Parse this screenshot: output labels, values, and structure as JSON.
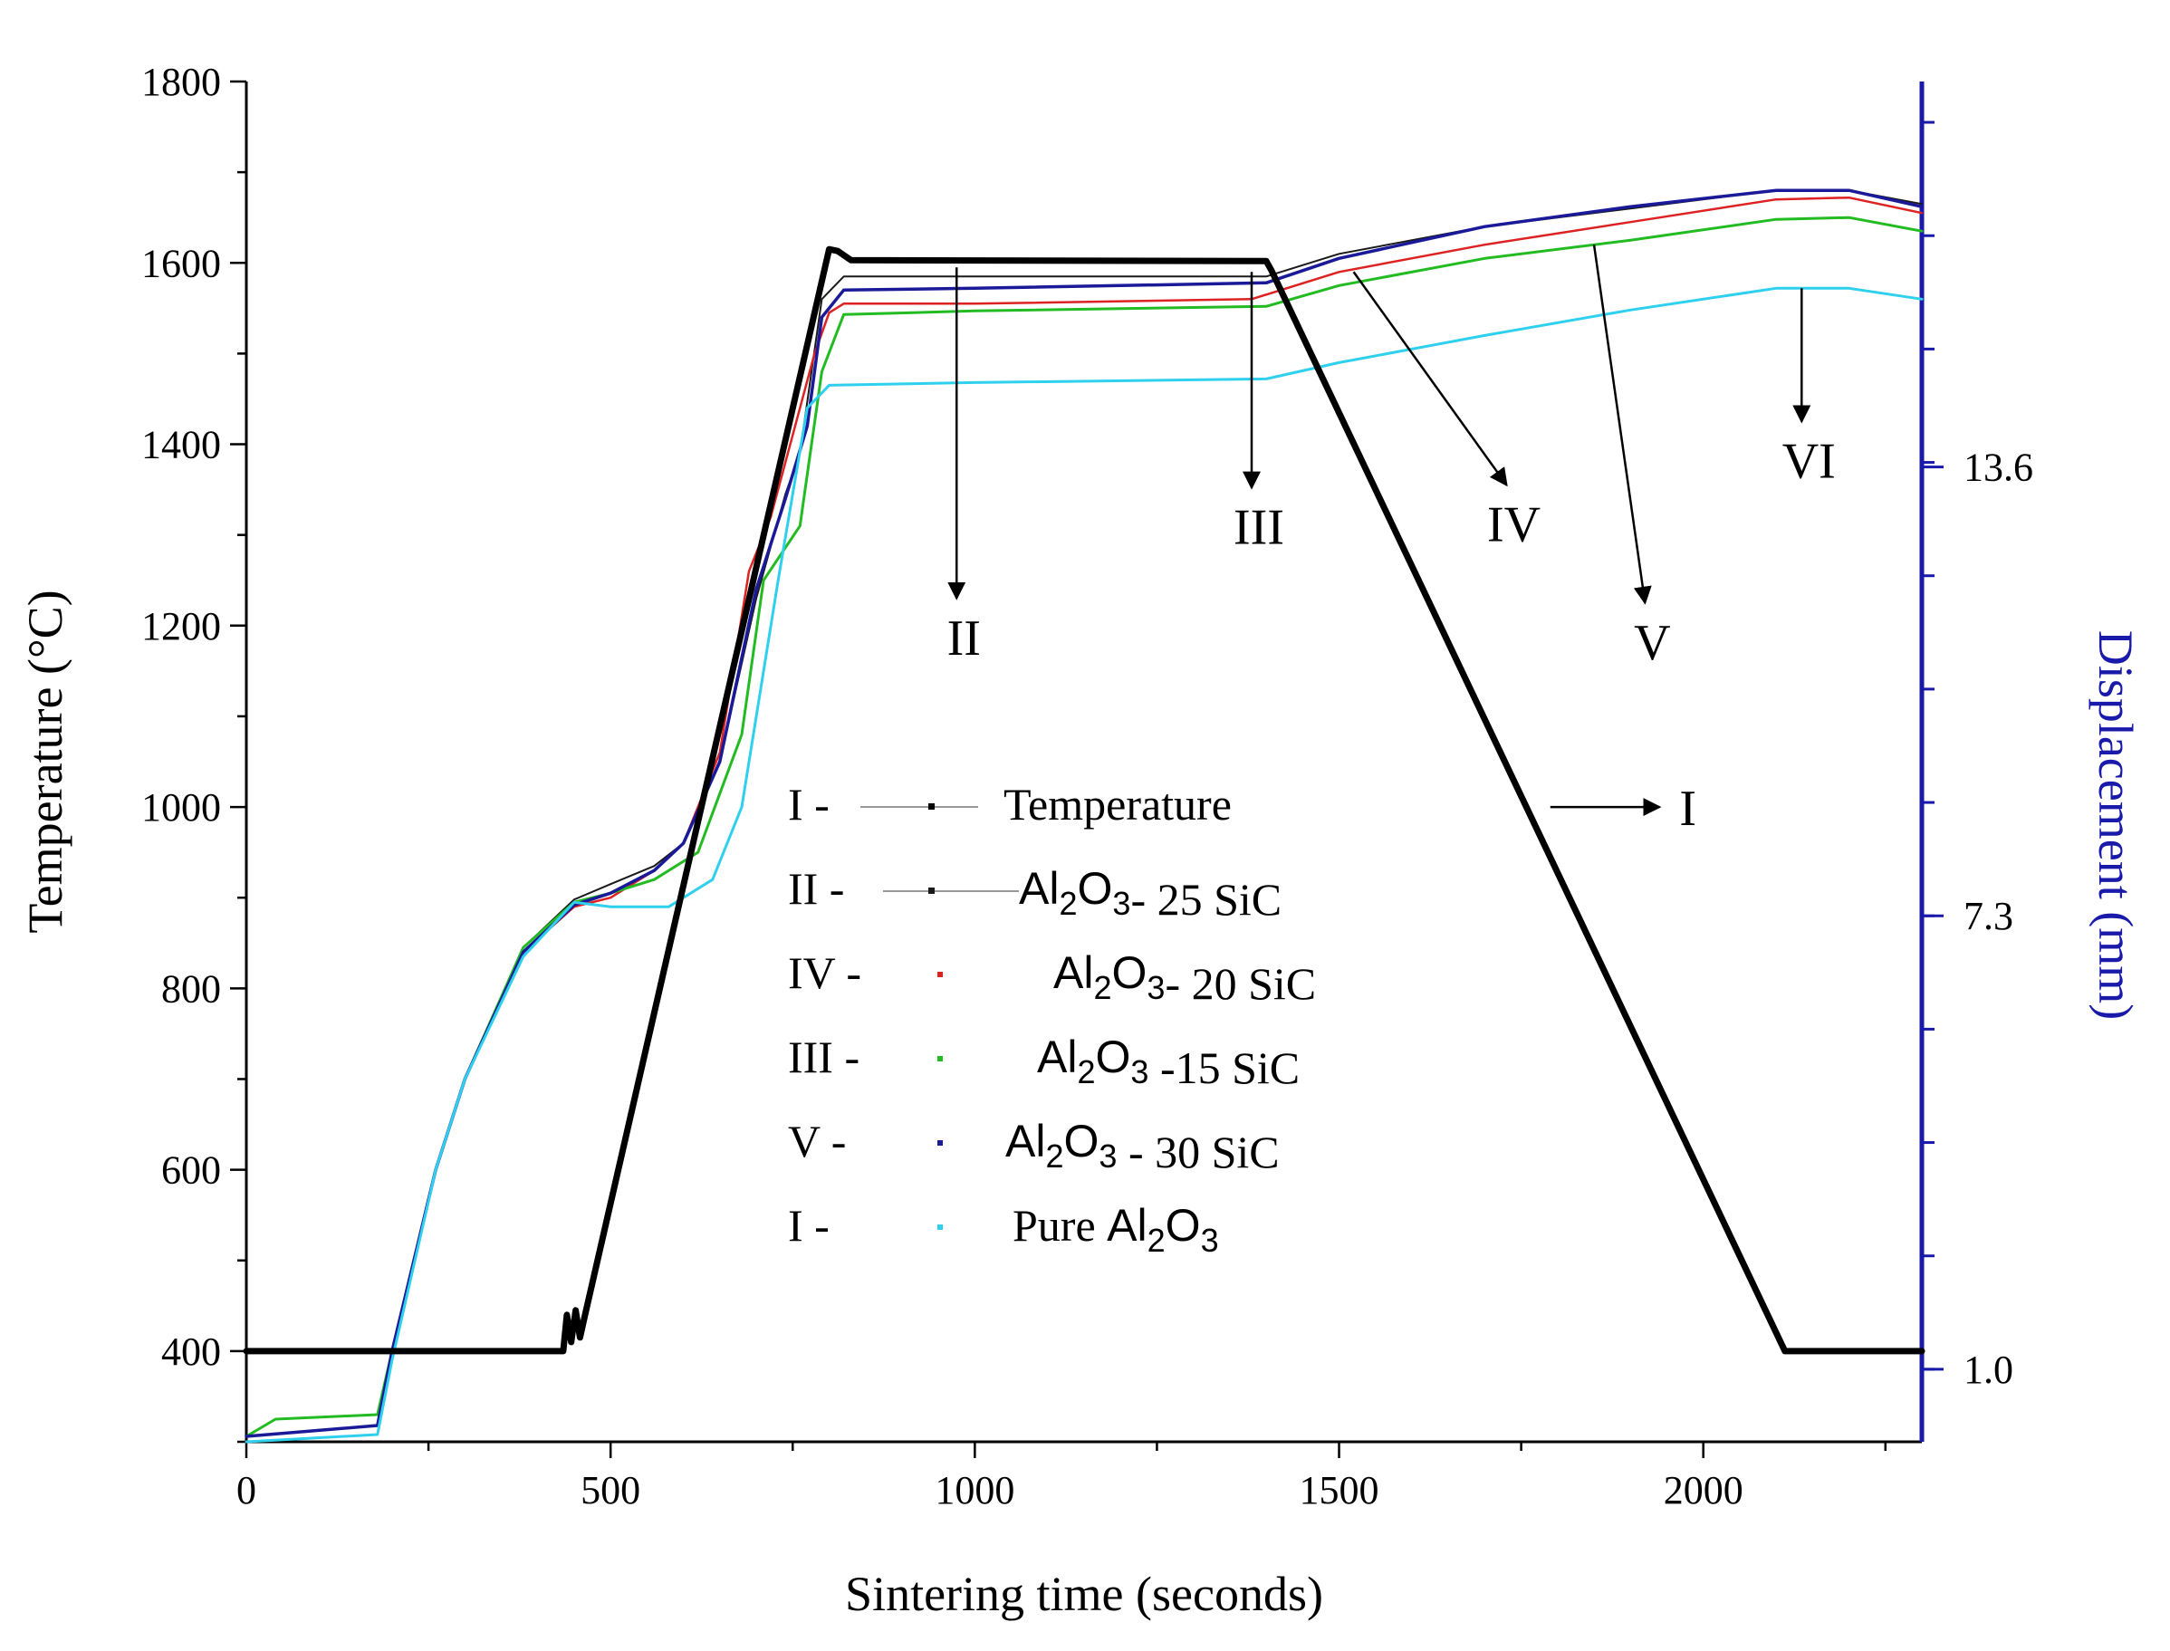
{
  "chart_data": {
    "type": "line",
    "title": "",
    "xlabel": "Sintering time (seconds)",
    "ylabel": "Temperature (°C)",
    "y2label": "Displacement (mm)",
    "xlim": [
      0,
      2300
    ],
    "ylim": [
      300,
      1800
    ],
    "x_ticks": [
      0,
      500,
      1000,
      1500,
      2000
    ],
    "y_ticks": [
      400,
      600,
      800,
      1000,
      1200,
      1400,
      1600,
      1800
    ],
    "y2_ticks": [
      {
        "label": "1.0",
        "at_temperature": 380
      },
      {
        "label": "7.3",
        "at_temperature": 880
      },
      {
        "label": "13.6",
        "at_temperature": 1375
      }
    ],
    "series": [
      {
        "name": "Temperature",
        "roman": "I",
        "color": "#000000",
        "width": 7,
        "points": [
          [
            0,
            400
          ],
          [
            435,
            400
          ],
          [
            440,
            440
          ],
          [
            446,
            410
          ],
          [
            452,
            445
          ],
          [
            458,
            415
          ],
          [
            465,
            440
          ],
          [
            800,
            1615
          ],
          [
            812,
            1613
          ],
          [
            830,
            1603
          ],
          [
            1400,
            1602
          ],
          [
            1407,
            1592
          ],
          [
            2112,
            400
          ],
          [
            2300,
            400
          ]
        ]
      },
      {
        "name": "Al2O3- 25 SiC",
        "roman": "II",
        "color": "#1a1a1a",
        "width": 2,
        "points": [
          [
            0,
            306
          ],
          [
            180,
            318
          ],
          [
            200,
            400
          ],
          [
            260,
            600
          ],
          [
            300,
            700
          ],
          [
            380,
            845
          ],
          [
            450,
            898
          ],
          [
            500,
            915
          ],
          [
            560,
            935
          ],
          [
            600,
            960
          ],
          [
            650,
            1050
          ],
          [
            700,
            1230
          ],
          [
            740,
            1345
          ],
          [
            760,
            1390
          ],
          [
            790,
            1560
          ],
          [
            820,
            1585
          ],
          [
            1000,
            1585
          ],
          [
            1400,
            1585
          ],
          [
            1500,
            1610
          ],
          [
            1700,
            1640
          ],
          [
            1900,
            1660
          ],
          [
            2100,
            1680
          ],
          [
            2200,
            1680
          ],
          [
            2300,
            1665
          ]
        ]
      },
      {
        "name": "Al2O3- 20 SiC",
        "roman": "IV",
        "color": "#dd2222",
        "width": 2.5,
        "points": [
          [
            0,
            306
          ],
          [
            180,
            318
          ],
          [
            200,
            400
          ],
          [
            260,
            600
          ],
          [
            300,
            700
          ],
          [
            380,
            840
          ],
          [
            450,
            890
          ],
          [
            500,
            900
          ],
          [
            560,
            930
          ],
          [
            600,
            960
          ],
          [
            650,
            1060
          ],
          [
            690,
            1260
          ],
          [
            720,
            1320
          ],
          [
            780,
            1500
          ],
          [
            800,
            1545
          ],
          [
            820,
            1555
          ],
          [
            1000,
            1555
          ],
          [
            1380,
            1560
          ],
          [
            1500,
            1590
          ],
          [
            1700,
            1620
          ],
          [
            1900,
            1645
          ],
          [
            2100,
            1670
          ],
          [
            2200,
            1672
          ],
          [
            2300,
            1655
          ]
        ]
      },
      {
        "name": "Al2O3 -15 SiC",
        "roman": "III",
        "color": "#22bb22",
        "width": 3,
        "points": [
          [
            0,
            306
          ],
          [
            40,
            325
          ],
          [
            180,
            330
          ],
          [
            200,
            400
          ],
          [
            260,
            600
          ],
          [
            300,
            700
          ],
          [
            380,
            845
          ],
          [
            450,
            895
          ],
          [
            500,
            905
          ],
          [
            560,
            920
          ],
          [
            620,
            950
          ],
          [
            680,
            1080
          ],
          [
            710,
            1250
          ],
          [
            760,
            1310
          ],
          [
            790,
            1480
          ],
          [
            820,
            1543
          ],
          [
            1000,
            1547
          ],
          [
            1400,
            1552
          ],
          [
            1500,
            1575
          ],
          [
            1700,
            1605
          ],
          [
            1900,
            1625
          ],
          [
            2100,
            1648
          ],
          [
            2200,
            1650
          ],
          [
            2300,
            1635
          ]
        ]
      },
      {
        "name": "Al2O3 - 30 SiC",
        "roman": "V",
        "color": "#1a1a99",
        "width": 3.5,
        "points": [
          [
            0,
            306
          ],
          [
            180,
            318
          ],
          [
            200,
            400
          ],
          [
            260,
            600
          ],
          [
            300,
            700
          ],
          [
            380,
            840
          ],
          [
            450,
            892
          ],
          [
            500,
            905
          ],
          [
            560,
            930
          ],
          [
            600,
            960
          ],
          [
            650,
            1050
          ],
          [
            700,
            1240
          ],
          [
            740,
            1340
          ],
          [
            770,
            1420
          ],
          [
            790,
            1540
          ],
          [
            820,
            1570
          ],
          [
            1000,
            1572
          ],
          [
            1400,
            1578
          ],
          [
            1500,
            1605
          ],
          [
            1700,
            1640
          ],
          [
            1900,
            1662
          ],
          [
            2100,
            1680
          ],
          [
            2200,
            1680
          ],
          [
            2300,
            1662
          ]
        ]
      },
      {
        "name": "Pure Al2O3",
        "roman": "I",
        "color": "#2fd0ee",
        "width": 3,
        "points": [
          [
            0,
            300
          ],
          [
            180,
            308
          ],
          [
            200,
            390
          ],
          [
            260,
            600
          ],
          [
            300,
            700
          ],
          [
            380,
            835
          ],
          [
            450,
            895
          ],
          [
            500,
            890
          ],
          [
            580,
            890
          ],
          [
            640,
            920
          ],
          [
            680,
            1000
          ],
          [
            730,
            1250
          ],
          [
            770,
            1440
          ],
          [
            800,
            1465
          ],
          [
            1000,
            1468
          ],
          [
            1400,
            1472
          ],
          [
            1500,
            1490
          ],
          [
            1700,
            1520
          ],
          [
            1900,
            1548
          ],
          [
            2100,
            1572
          ],
          [
            2200,
            1572
          ],
          [
            2300,
            1560
          ]
        ]
      }
    ],
    "annotations": [
      {
        "label": "II",
        "arrow_from": [
          975,
          1595
        ],
        "arrow_to": [
          975,
          1230
        ]
      },
      {
        "label": "III",
        "arrow_from": [
          1380,
          1590
        ],
        "arrow_to": [
          1380,
          1352
        ]
      },
      {
        "label": "IV",
        "arrow_from": [
          1520,
          1590
        ],
        "arrow_to": [
          1730,
          1355
        ]
      },
      {
        "label": "V",
        "arrow_from": [
          1850,
          1620
        ],
        "arrow_to": [
          1920,
          1225
        ]
      },
      {
        "label": "VI",
        "arrow_from": [
          2135,
          1572
        ],
        "arrow_to": [
          2135,
          1425
        ]
      },
      {
        "label": "I",
        "arrow_from": [
          1790,
          1000
        ],
        "arrow_to": [
          1940,
          1000
        ]
      }
    ],
    "legend": {
      "placement": "center",
      "entries": [
        {
          "roman": "I -",
          "text": "Temperature",
          "color": "#000000"
        },
        {
          "roman": "II -",
          "text": "Al2O3- 25 SiC",
          "color": "#1a1a1a"
        },
        {
          "roman": "IV -",
          "text": "Al2O3- 20 SiC",
          "color": "#dd2222"
        },
        {
          "roman": "III -",
          "text": "Al2O3 -15 SiC",
          "color": "#22bb22"
        },
        {
          "roman": "V -",
          "text": "Al2O3 - 30 SiC",
          "color": "#1a1a99"
        },
        {
          "roman": "I -",
          "text": "Pure Al2O3",
          "color": "#2fd0ee"
        }
      ]
    },
    "grid": false
  }
}
